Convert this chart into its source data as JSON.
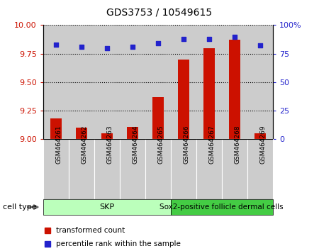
{
  "title": "GDS3753 / 10549615",
  "samples": [
    "GSM464261",
    "GSM464262",
    "GSM464263",
    "GSM464264",
    "GSM464265",
    "GSM464266",
    "GSM464267",
    "GSM464268",
    "GSM464269"
  ],
  "transformed_counts": [
    9.18,
    9.1,
    9.05,
    9.11,
    9.37,
    9.7,
    9.8,
    9.87,
    9.05
  ],
  "percentile_ranks": [
    83,
    81,
    80,
    81,
    84,
    88,
    88,
    90,
    82
  ],
  "ylim_left": [
    9.0,
    10.0
  ],
  "ylim_right": [
    0,
    100
  ],
  "yticks_left": [
    9.0,
    9.25,
    9.5,
    9.75,
    10.0
  ],
  "yticks_right": [
    0,
    25,
    50,
    75,
    100
  ],
  "bar_color": "#cc1100",
  "dot_color": "#2222cc",
  "skp_count": 5,
  "skp_color": "#bbffbb",
  "sox2_color": "#44cc44",
  "skp_label": "SKP",
  "sox2_label": "Sox2-positive follicle dermal cells",
  "cell_type_label": "cell type",
  "legend_bar_label": "transformed count",
  "legend_dot_label": "percentile rank within the sample",
  "col_bg_color": "#cccccc",
  "plot_bg_color": "#ffffff"
}
